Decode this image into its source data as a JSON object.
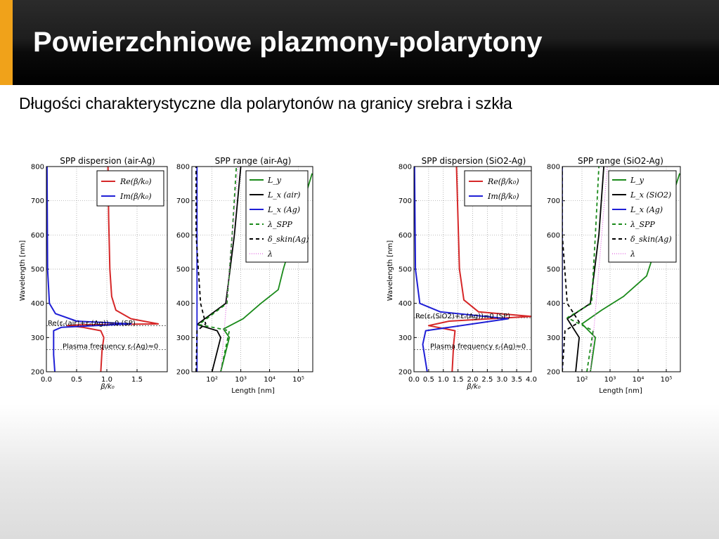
{
  "slide": {
    "title": "Powierzchniowe plazmony-polarytony",
    "subtitle": "Długości charakterystyczne dla polarytonów na granicy srebra i szkła",
    "accent_color": "#f0a21a"
  },
  "figures": [
    {
      "dispersion": {
        "title": "SPP dispersion (air-Ag)",
        "ylabel": "Wavelength [nm]",
        "xlabel": "β/k₀",
        "xticks": [
          "0.0",
          "0.5",
          "1.0",
          "1.5"
        ],
        "yticks": [
          "200",
          "300",
          "400",
          "500",
          "600",
          "700",
          "800"
        ],
        "legend": [
          "Re(β/k₀)",
          "Im(β/k₀)"
        ],
        "sp_label": "Re(εᵣ(air)+εᵣ(Ag))=0 (SP)",
        "plasma_label": "Plasma frequency εᵣ(Ag)≈0"
      },
      "range": {
        "title": "SPP range (air-Ag)",
        "xlabel": "Length [nm]",
        "xticks": [
          "10²",
          "10³",
          "10⁴",
          "10⁵"
        ],
        "yticks": [
          "200",
          "300",
          "400",
          "500",
          "600",
          "700",
          "800"
        ],
        "legend": [
          "L_y",
          "L_x (air)",
          "L_x (Ag)",
          "λ_SPP",
          "δ_skin(Ag)",
          "λ"
        ]
      }
    },
    {
      "dispersion": {
        "title": "SPP dispersion (SiO2-Ag)",
        "ylabel": "Wavelength [nm]",
        "xlabel": "β/k₀",
        "xticks": [
          "0.0",
          "0.5",
          "1.0",
          "1.5",
          "2.0",
          "2.5",
          "3.0",
          "3.5",
          "4.0"
        ],
        "yticks": [
          "200",
          "300",
          "400",
          "500",
          "600",
          "700",
          "800"
        ],
        "legend": [
          "Re(β/k₀)",
          "Im(β/k₀)"
        ],
        "sp_label": "Re(εᵣ(SiO2)+εᵣ(Ag))=0 (SP)",
        "plasma_label": "Plasma frequency εᵣ(Ag)≈0"
      },
      "range": {
        "title": "SPP range (SiO2-Ag)",
        "xlabel": "Length [nm]",
        "xticks": [
          "10²",
          "10³",
          "10⁴",
          "10⁵"
        ],
        "yticks": [
          "200",
          "300",
          "400",
          "500",
          "600",
          "700",
          "800"
        ],
        "legend": [
          "L_y",
          "L_x (SiO2)",
          "L_x (Ag)",
          "λ_SPP",
          "δ_skin(Ag)",
          "λ"
        ]
      }
    }
  ],
  "colors": {
    "re": "#d62728",
    "im": "#1f1fd6",
    "ly": "#1a8a1a",
    "black": "#000000",
    "lambda": "#e066e0"
  },
  "chart_data": [
    {
      "type": "line",
      "title": "SPP dispersion (air-Ag)",
      "xlabel": "β/k₀",
      "ylabel": "Wavelength [nm]",
      "xlim": [
        0,
        2.0
      ],
      "ylim": [
        200,
        800
      ],
      "grid": true,
      "legend_position": "top-right",
      "series": [
        {
          "name": "Re(β/k₀)",
          "points": [
            [
              0.9,
              200
            ],
            [
              0.92,
              260
            ],
            [
              0.95,
              300
            ],
            [
              0.9,
              320
            ],
            [
              0.6,
              330
            ],
            [
              0.35,
              335
            ],
            [
              0.55,
              337
            ],
            [
              1.85,
              340
            ],
            [
              1.4,
              355
            ],
            [
              1.15,
              380
            ],
            [
              1.08,
              420
            ],
            [
              1.05,
              500
            ],
            [
              1.03,
              650
            ],
            [
              1.02,
              800
            ]
          ]
        },
        {
          "name": "Im(β/k₀)",
          "points": [
            [
              0.14,
              200
            ],
            [
              0.12,
              250
            ],
            [
              0.12,
              300
            ],
            [
              0.12,
              320
            ],
            [
              0.25,
              330
            ],
            [
              1.4,
              340
            ],
            [
              0.5,
              348
            ],
            [
              0.15,
              370
            ],
            [
              0.05,
              400
            ],
            [
              0.02,
              500
            ],
            [
              0.01,
              800
            ]
          ]
        }
      ]
    },
    {
      "type": "line",
      "title": "SPP range (air-Ag)",
      "xlabel": "Length [nm]",
      "xscale": "log",
      "ylim": [
        200,
        800
      ],
      "grid": true,
      "legend_position": "top-right",
      "series": [
        {
          "name": "L_y",
          "points": [
            [
              200,
              200
            ],
            [
              400,
              300
            ],
            [
              250,
              325
            ],
            [
              1200,
              355
            ],
            [
              5000,
              400
            ],
            [
              20000,
              440
            ],
            [
              30000,
              500
            ],
            [
              300000,
              780
            ]
          ]
        },
        {
          "name": "L_x (air)",
          "points": [
            [
              100,
              200
            ],
            [
              200,
              300
            ],
            [
              150,
              320
            ],
            [
              30,
              338
            ],
            [
              300,
              400
            ],
            [
              600,
              600
            ],
            [
              1000,
              800
            ]
          ]
        },
        {
          "name": "L_x (Ag)",
          "points": [
            [
              30,
              200
            ],
            [
              30,
              800
            ]
          ]
        },
        {
          "name": "λ_SPP",
          "points": [
            [
              200,
              200
            ],
            [
              400,
              320
            ],
            [
              35,
              338
            ],
            [
              330,
              400
            ],
            [
              500,
              600
            ],
            [
              700,
              800
            ]
          ]
        },
        {
          "name": "δ_skin(Ag)",
          "points": [
            [
              28,
              200
            ],
            [
              30,
              320
            ],
            [
              60,
              340
            ],
            [
              40,
              400
            ],
            [
              28,
              600
            ],
            [
              28,
              800
            ]
          ]
        },
        {
          "name": "λ",
          "points": [
            [
              200,
              200
            ],
            [
              800,
              800
            ]
          ]
        }
      ]
    },
    {
      "type": "line",
      "title": "SPP dispersion (SiO2-Ag)",
      "xlabel": "β/k₀",
      "ylabel": "Wavelength [nm]",
      "xlim": [
        0,
        4.0
      ],
      "ylim": [
        200,
        800
      ],
      "grid": true,
      "legend_position": "top-right",
      "series": [
        {
          "name": "Re(β/k₀)",
          "points": [
            [
              1.3,
              200
            ],
            [
              1.35,
              280
            ],
            [
              1.4,
              320
            ],
            [
              0.5,
              335
            ],
            [
              1.2,
              348
            ],
            [
              4.0,
              362
            ],
            [
              2.2,
              375
            ],
            [
              1.7,
              410
            ],
            [
              1.55,
              500
            ],
            [
              1.45,
              800
            ]
          ]
        },
        {
          "name": "Im(β/k₀)",
          "points": [
            [
              0.45,
              200
            ],
            [
              0.3,
              280
            ],
            [
              0.4,
              320
            ],
            [
              3.2,
              355
            ],
            [
              0.9,
              375
            ],
            [
              0.2,
              400
            ],
            [
              0.05,
              500
            ],
            [
              0.02,
              800
            ]
          ]
        }
      ]
    },
    {
      "type": "line",
      "title": "SPP range (SiO2-Ag)",
      "xlabel": "Length [nm]",
      "xscale": "log",
      "ylim": [
        200,
        800
      ],
      "grid": true,
      "legend_position": "top-right",
      "series": [
        {
          "name": "L_y",
          "points": [
            [
              200,
              200
            ],
            [
              300,
              300
            ],
            [
              100,
              340
            ],
            [
              500,
              380
            ],
            [
              3000,
              420
            ],
            [
              20000,
              480
            ],
            [
              300000,
              780
            ]
          ]
        },
        {
          "name": "L_x (SiO2)",
          "points": [
            [
              60,
              200
            ],
            [
              80,
              300
            ],
            [
              30,
              355
            ],
            [
              200,
              400
            ],
            [
              400,
              600
            ],
            [
              600,
              800
            ]
          ]
        },
        {
          "name": "L_x (Ag)",
          "points": [
            [
              20,
              200
            ],
            [
              20,
              800
            ]
          ]
        },
        {
          "name": "λ_SPP",
          "points": [
            [
              150,
              200
            ],
            [
              250,
              320
            ],
            [
              30,
              358
            ],
            [
              220,
              400
            ],
            [
              300,
              600
            ],
            [
              400,
              800
            ]
          ]
        },
        {
          "name": "δ_skin(Ag)",
          "points": [
            [
              20,
              200
            ],
            [
              25,
              320
            ],
            [
              80,
              345
            ],
            [
              30,
              400
            ],
            [
              20,
              600
            ],
            [
              20,
              800
            ]
          ]
        },
        {
          "name": "λ",
          "points": [
            [
              200,
              200
            ],
            [
              800,
              800
            ]
          ]
        }
      ]
    }
  ]
}
